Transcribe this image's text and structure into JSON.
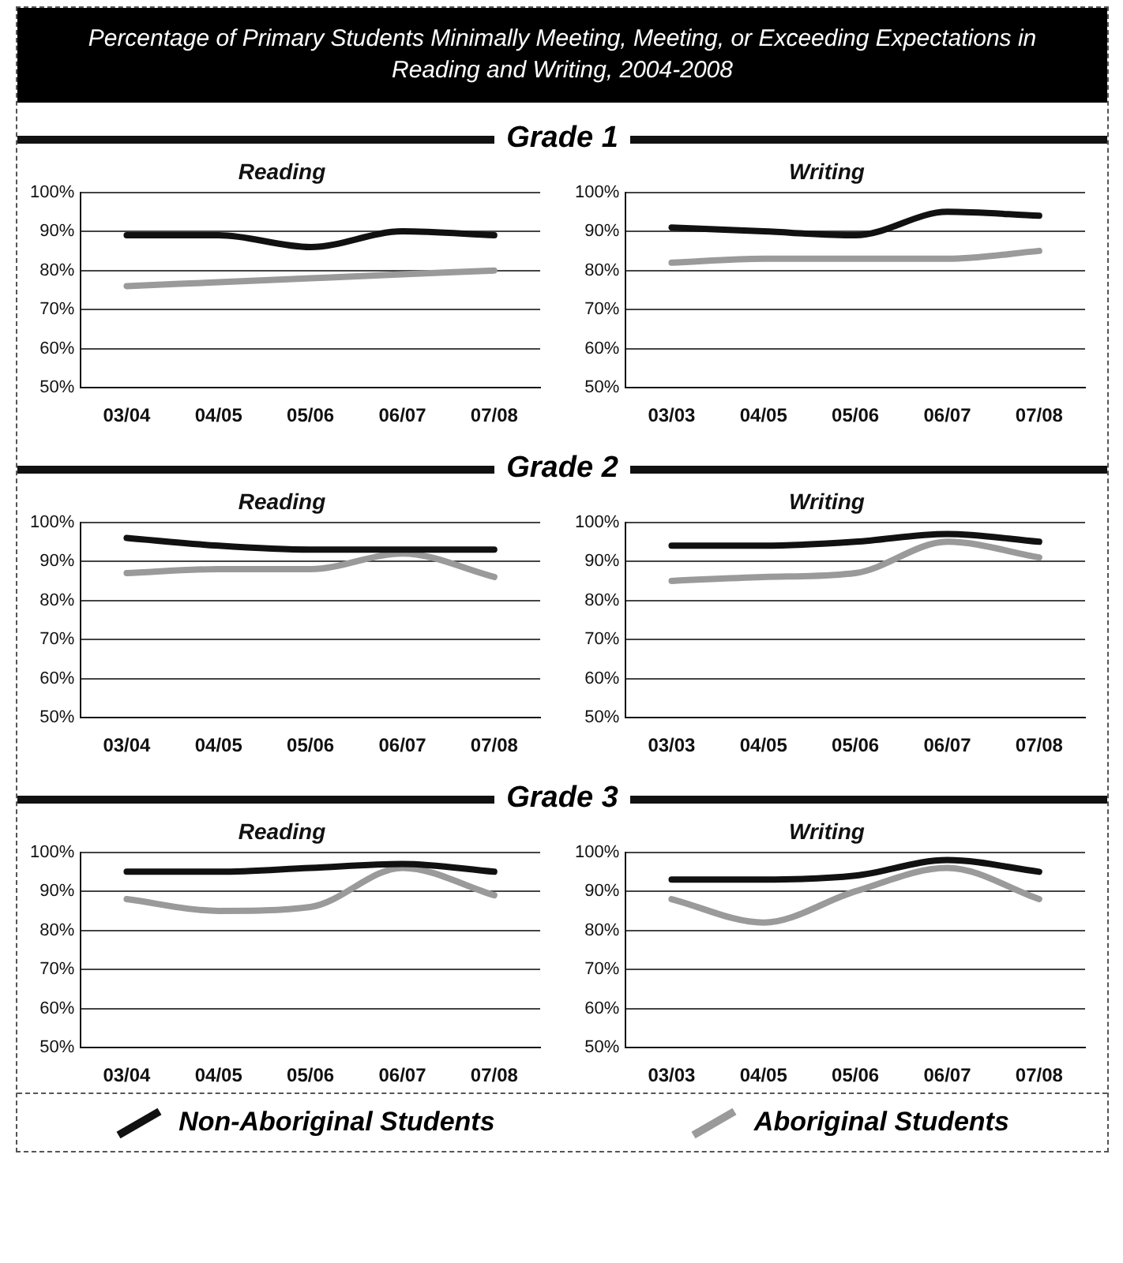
{
  "chart_data": [
    {
      "type": "line",
      "annotations": [
        "Percentage of Primary Students Minimally Meeting, Meeting, or Exceeding Expectations in Reading and Writing, 2004-2008"
      ],
      "subtitle": "Grade 1",
      "title": "Reading",
      "categories": [
        "03/04",
        "04/05",
        "05/06",
        "06/07",
        "07/08"
      ],
      "ylim": [
        50,
        100
      ],
      "yticks": [
        {
          "value": 50,
          "label": "50%"
        },
        {
          "value": 60,
          "label": "60%"
        },
        {
          "value": 70,
          "label": "70%"
        },
        {
          "value": 80,
          "label": "80%"
        },
        {
          "value": 90,
          "label": "90%"
        },
        {
          "value": 100,
          "label": "100%"
        }
      ],
      "grid": "y",
      "marker": "none",
      "series": [
        {
          "color": "#111111",
          "values": [
            89,
            89,
            86,
            90,
            89
          ]
        },
        {
          "color": "#9a9a9a",
          "values": [
            76,
            77,
            78,
            79,
            80
          ]
        }
      ]
    },
    {
      "type": "line",
      "title": "Writing",
      "categories": [
        "03/03",
        "04/05",
        "05/06",
        "06/07",
        "07/08"
      ],
      "ylim": [
        50,
        100
      ],
      "yticks": [
        {
          "value": 50,
          "label": "50%"
        },
        {
          "value": 60,
          "label": "60%"
        },
        {
          "value": 70,
          "label": "70%"
        },
        {
          "value": 80,
          "label": "80%"
        },
        {
          "value": 90,
          "label": "90%"
        },
        {
          "value": 100,
          "label": "100%"
        }
      ],
      "grid": "y",
      "marker": "none",
      "series": [
        {
          "color": "#111111",
          "values": [
            91,
            90,
            89,
            95,
            94
          ]
        },
        {
          "color": "#9a9a9a",
          "values": [
            82,
            83,
            83,
            83,
            85
          ]
        }
      ]
    },
    {
      "type": "line",
      "subtitle": "Grade 2",
      "title": "Reading",
      "categories": [
        "03/04",
        "04/05",
        "05/06",
        "06/07",
        "07/08"
      ],
      "ylim": [
        50,
        100
      ],
      "yticks": [
        {
          "value": 50,
          "label": "50%"
        },
        {
          "value": 60,
          "label": "60%"
        },
        {
          "value": 70,
          "label": "70%"
        },
        {
          "value": 80,
          "label": "80%"
        },
        {
          "value": 90,
          "label": "90%"
        },
        {
          "value": 100,
          "label": "100%"
        }
      ],
      "grid": "y",
      "marker": "none",
      "series": [
        {
          "color": "#111111",
          "values": [
            96,
            94,
            93,
            93,
            93
          ]
        },
        {
          "color": "#9a9a9a",
          "values": [
            87,
            88,
            88,
            92,
            86
          ]
        }
      ]
    },
    {
      "type": "line",
      "title": "Writing",
      "categories": [
        "03/03",
        "04/05",
        "05/06",
        "06/07",
        "07/08"
      ],
      "ylim": [
        50,
        100
      ],
      "yticks": [
        {
          "value": 50,
          "label": "50%"
        },
        {
          "value": 60,
          "label": "60%"
        },
        {
          "value": 70,
          "label": "70%"
        },
        {
          "value": 80,
          "label": "80%"
        },
        {
          "value": 90,
          "label": "90%"
        },
        {
          "value": 100,
          "label": "100%"
        }
      ],
      "grid": "y",
      "marker": "none",
      "series": [
        {
          "color": "#111111",
          "values": [
            94,
            94,
            95,
            97,
            95
          ]
        },
        {
          "color": "#9a9a9a",
          "values": [
            85,
            86,
            87,
            95,
            91
          ]
        }
      ]
    },
    {
      "type": "line",
      "subtitle": "Grade 3",
      "title": "Reading",
      "categories": [
        "03/04",
        "04/05",
        "05/06",
        "06/07",
        "07/08"
      ],
      "ylim": [
        50,
        100
      ],
      "yticks": [
        {
          "value": 50,
          "label": "50%"
        },
        {
          "value": 60,
          "label": "60%"
        },
        {
          "value": 70,
          "label": "70%"
        },
        {
          "value": 80,
          "label": "80%"
        },
        {
          "value": 90,
          "label": "90%"
        },
        {
          "value": 100,
          "label": "100%"
        }
      ],
      "grid": "y",
      "marker": "none",
      "series": [
        {
          "color": "#111111",
          "values": [
            95,
            95,
            96,
            97,
            95
          ]
        },
        {
          "color": "#9a9a9a",
          "values": [
            88,
            85,
            86,
            96,
            89
          ]
        }
      ]
    },
    {
      "type": "line",
      "title": "Writing",
      "categories": [
        "03/03",
        "04/05",
        "05/06",
        "06/07",
        "07/08"
      ],
      "ylim": [
        50,
        100
      ],
      "yticks": [
        {
          "value": 50,
          "label": "50%"
        },
        {
          "value": 60,
          "label": "60%"
        },
        {
          "value": 70,
          "label": "70%"
        },
        {
          "value": 80,
          "label": "80%"
        },
        {
          "value": 90,
          "label": "90%"
        },
        {
          "value": 100,
          "label": "100%"
        }
      ],
      "grid": "y",
      "marker": "none",
      "legend": "bottom",
      "series": [
        {
          "name": "Non-Aboriginal Students",
          "color": "#111111",
          "values": [
            93,
            93,
            94,
            98,
            95
          ]
        },
        {
          "name": "Aboriginal Students",
          "color": "#9a9a9a",
          "values": [
            88,
            82,
            90,
            96,
            88
          ]
        }
      ]
    }
  ]
}
